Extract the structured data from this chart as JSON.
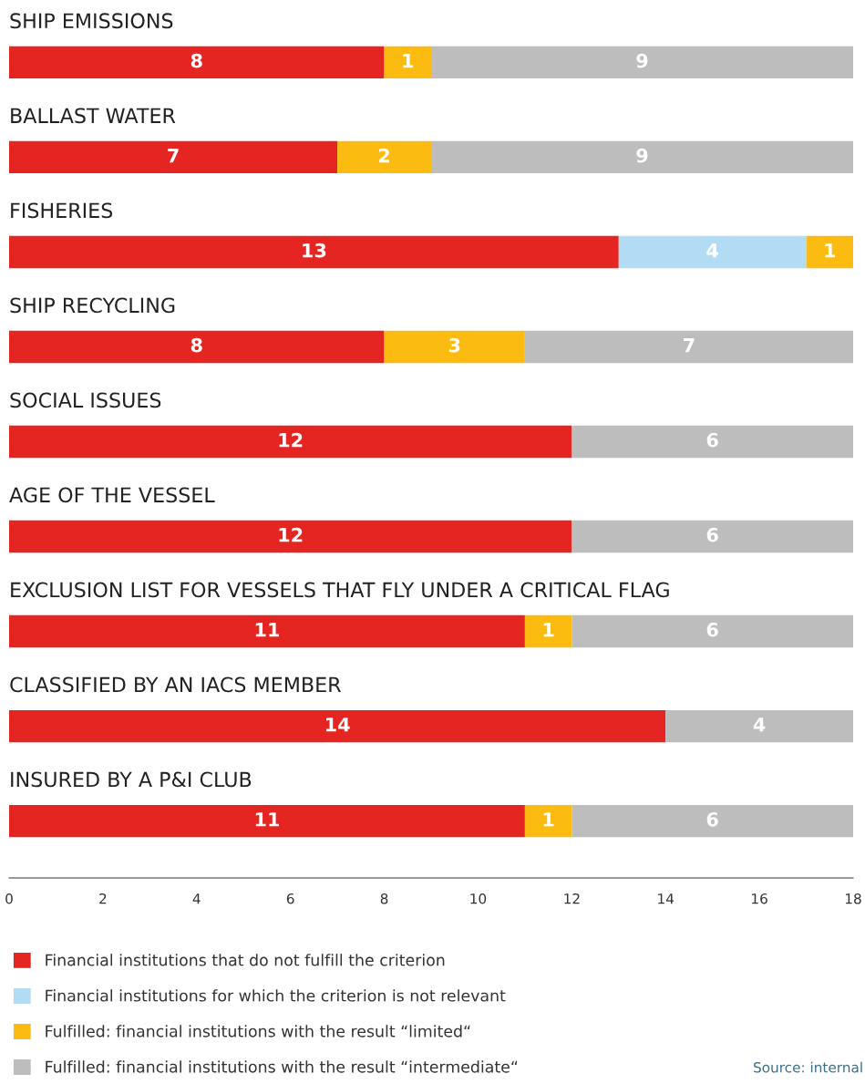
{
  "chart_data": {
    "type": "bar",
    "orientation": "horizontal",
    "stacked": true,
    "categories": [
      "SHIP EMISSIONS",
      "BALLAST WATER",
      "FISHERIES",
      "SHIP RECYCLING",
      "SOCIAL ISSUES",
      "AGE OF THE VESSEL",
      "EXCLUSION LIST FOR VESSELS THAT FLY UNDER A CRITICAL FLAG",
      "CLASSIFIED BY AN IACS MEMBER",
      "INSURED BY A P&I CLUB"
    ],
    "series": [
      {
        "name": "Financial institutions that do not fulfill the criterion",
        "color": "#e52521",
        "values": [
          8,
          7,
          13,
          8,
          12,
          12,
          11,
          14,
          11
        ]
      },
      {
        "name": "Financial institutions for which the criterion is not relevant",
        "color": "#b2dcf4",
        "values": [
          null,
          null,
          4,
          null,
          null,
          null,
          null,
          null,
          null
        ]
      },
      {
        "name": "Fulfilled: financial institutions with the result “limited“",
        "color": "#fbbb10",
        "values": [
          1,
          2,
          1,
          3,
          null,
          null,
          1,
          null,
          1
        ]
      },
      {
        "name": "Fulfilled: financial institutions with the result “intermediate“",
        "color": "#bdbdbd",
        "values": [
          9,
          9,
          null,
          7,
          6,
          6,
          6,
          4,
          6
        ]
      }
    ],
    "xlim": [
      0,
      18
    ],
    "xticks": [
      0,
      2,
      4,
      6,
      8,
      10,
      12,
      14,
      16,
      18
    ],
    "data_labels": true,
    "grid": false,
    "legend": "bottom",
    "tick_labels": "x",
    "annotations": [
      "Source: internal"
    ]
  }
}
